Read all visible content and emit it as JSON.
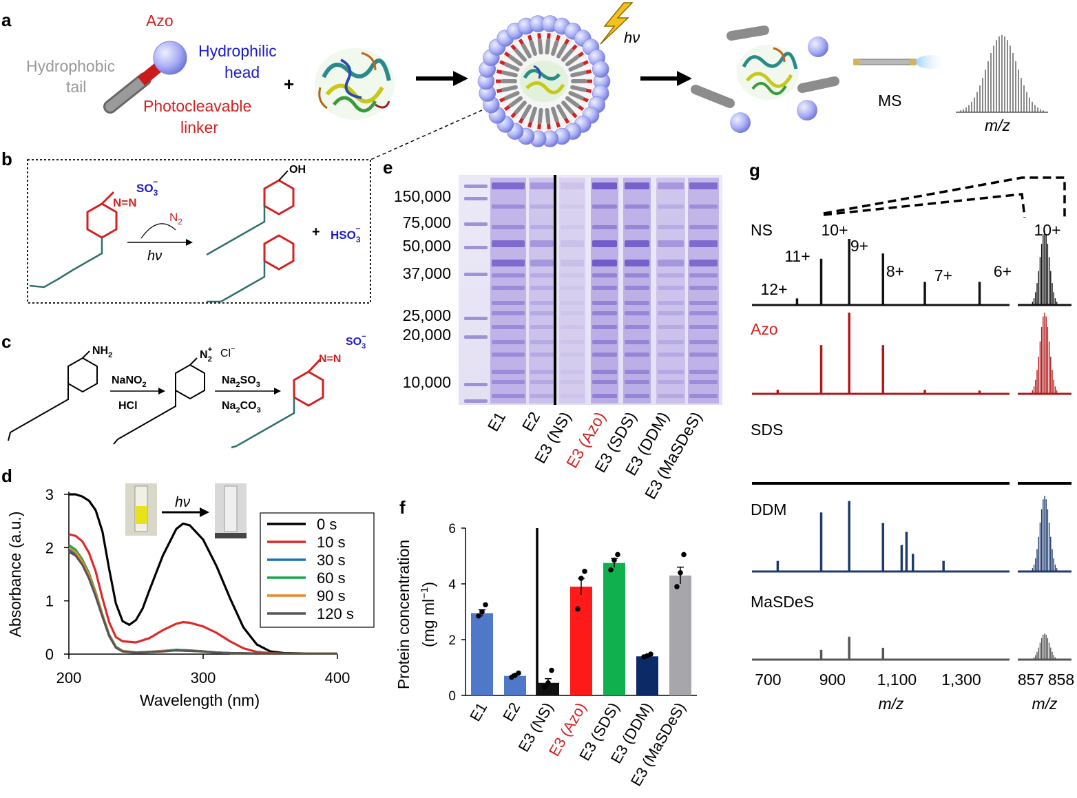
{
  "panels": {
    "a": {
      "letter": "a",
      "azo": "Azo",
      "hydrophobic_1": "Hydrophobic",
      "hydrophobic_2": "tail",
      "hydrophilic_1": "Hydrophilic",
      "hydrophilic_2": "head",
      "photocleavable_1": "Photocleavable",
      "photocleavable_2": "linker",
      "plus": "+",
      "hv": "hν",
      "ms": "MS",
      "mz": "m/z"
    },
    "b": {
      "letter": "b",
      "so3": "SO",
      "so3_sub": "3",
      "so3_sup": "−",
      "nn": "N=N",
      "oh": "OH",
      "n2": "N",
      "n2_sub": "2",
      "hv": "hν",
      "plus": "+",
      "hso3": "HSO",
      "hso3_sub": "3",
      "hso3_sup": "−"
    },
    "c": {
      "letter": "c",
      "nh2": "NH",
      "nh2_sub": "2",
      "n2cl": "N",
      "n2cl_sub": "2",
      "n2cl_sup": "+",
      "cl": "Cl",
      "cl_sup": "−",
      "r1_top": "NaNO",
      "r1_top_sub": "2",
      "r1_bottom": "HCl",
      "r2_top": "Na",
      "r2_top_sub1": "2",
      "r2_top_mid": "SO",
      "r2_top_sub2": "3",
      "r2_bottom": "Na",
      "r2_bottom_sub1": "2",
      "r2_bottom_mid": "CO",
      "r2_bottom_sub2": "3",
      "nn": "N=N",
      "so3": "SO",
      "so3_sub": "3",
      "so3_sup": "−"
    },
    "d": {
      "letter": "d",
      "hv": "hν"
    },
    "e": {
      "letter": "e",
      "mw_markers": [
        "150,000",
        "75,000",
        "50,000",
        "37,000",
        "25,000",
        "20,000",
        "10,000"
      ],
      "lanes": [
        "E1",
        "E2",
        "E3 (NS)",
        "E3 (Azo)",
        "E3 (SDS)",
        "E3 (DDM)",
        "E3 (MaSDeS)"
      ]
    },
    "f": {
      "letter": "f"
    },
    "g": {
      "letter": "g",
      "traces": [
        "NS",
        "Azo",
        "SDS",
        "DDM",
        "MaSDeS"
      ],
      "charge_states": [
        "12+",
        "11+",
        "10+",
        "9+",
        "8+",
        "7+",
        "6+"
      ],
      "zoom_label": "10+",
      "x_ticks_main": [
        "700",
        "900",
        "1,100",
        "1,300"
      ],
      "x_ticks_zoom": [
        "857",
        "858"
      ],
      "x_label": "m/z"
    }
  },
  "colors": {
    "azo_red": "#d42020",
    "hydrophilic_blue": "#1a1acc",
    "gray_text": "#999999",
    "teal_chain": "#2f6f6a",
    "gel_purple": "#6a4fc4",
    "ns_black": "#111111",
    "azo_trace": "#b01818",
    "ddm_navy": "#1c3a6e",
    "masdes_gray": "#555555"
  },
  "chart_data": [
    {
      "id": "d",
      "type": "line",
      "title": "",
      "xlabel": "Wavelength (nm)",
      "ylabel": "Absorbance (a.u.)",
      "xlim": [
        200,
        400
      ],
      "ylim": [
        0,
        3
      ],
      "xticks": [
        200,
        300,
        400
      ],
      "yticks": [
        0,
        1,
        2,
        3
      ],
      "legend_position": "right",
      "series": [
        {
          "name": "0 s",
          "color": "#000000",
          "x": [
            200,
            205,
            210,
            215,
            220,
            225,
            230,
            235,
            240,
            245,
            250,
            255,
            260,
            270,
            280,
            285,
            290,
            300,
            310,
            320,
            330,
            340,
            350,
            360,
            380,
            400
          ],
          "y": [
            3.0,
            3.0,
            2.96,
            2.88,
            2.7,
            2.3,
            1.6,
            0.95,
            0.62,
            0.55,
            0.64,
            0.86,
            1.2,
            1.85,
            2.35,
            2.45,
            2.42,
            2.15,
            1.65,
            1.05,
            0.5,
            0.18,
            0.05,
            0.02,
            0.01,
            0.01
          ]
        },
        {
          "name": "10 s",
          "color": "#e02828",
          "x": [
            200,
            205,
            210,
            215,
            220,
            225,
            230,
            235,
            240,
            250,
            260,
            270,
            280,
            285,
            290,
            300,
            310,
            320,
            330,
            340,
            350,
            360,
            380,
            400
          ],
          "y": [
            2.25,
            2.22,
            2.12,
            1.9,
            1.55,
            1.05,
            0.6,
            0.32,
            0.24,
            0.22,
            0.3,
            0.45,
            0.57,
            0.6,
            0.59,
            0.52,
            0.4,
            0.24,
            0.11,
            0.04,
            0.02,
            0.01,
            0.01,
            0.01
          ]
        },
        {
          "name": "30 s",
          "color": "#1f6fbf",
          "x": [
            200,
            205,
            210,
            215,
            220,
            225,
            230,
            235,
            240,
            250,
            260,
            270,
            280,
            290,
            300,
            310,
            320,
            340,
            360,
            400
          ],
          "y": [
            1.95,
            1.88,
            1.7,
            1.45,
            1.12,
            0.72,
            0.36,
            0.14,
            0.06,
            0.03,
            0.04,
            0.06,
            0.08,
            0.07,
            0.05,
            0.03,
            0.02,
            0.01,
            0.01,
            0.01
          ]
        },
        {
          "name": "60 s",
          "color": "#1aa64f",
          "x": [
            200,
            205,
            210,
            215,
            220,
            225,
            230,
            235,
            240,
            250,
            260,
            270,
            280,
            290,
            300,
            310,
            320,
            340,
            360,
            400
          ],
          "y": [
            2.05,
            1.96,
            1.78,
            1.52,
            1.16,
            0.74,
            0.37,
            0.14,
            0.06,
            0.03,
            0.04,
            0.06,
            0.08,
            0.07,
            0.05,
            0.03,
            0.02,
            0.01,
            0.01,
            0.01
          ]
        },
        {
          "name": "90 s",
          "color": "#e8862a",
          "x": [
            200,
            205,
            210,
            215,
            220,
            225,
            230,
            235,
            240,
            250,
            260,
            270,
            280,
            290,
            300,
            310,
            320,
            340,
            360,
            400
          ],
          "y": [
            2.0,
            1.92,
            1.74,
            1.48,
            1.13,
            0.72,
            0.36,
            0.13,
            0.06,
            0.03,
            0.04,
            0.06,
            0.07,
            0.06,
            0.05,
            0.03,
            0.02,
            0.01,
            0.01,
            0.01
          ]
        },
        {
          "name": "120 s",
          "color": "#555555",
          "x": [
            200,
            205,
            210,
            215,
            220,
            225,
            230,
            235,
            240,
            250,
            260,
            270,
            280,
            290,
            300,
            310,
            320,
            340,
            360,
            400
          ],
          "y": [
            1.92,
            1.85,
            1.68,
            1.42,
            1.08,
            0.7,
            0.34,
            0.12,
            0.05,
            0.03,
            0.04,
            0.05,
            0.07,
            0.06,
            0.05,
            0.03,
            0.02,
            0.01,
            0.01,
            0.01
          ]
        }
      ]
    },
    {
      "id": "f",
      "type": "bar",
      "title": "",
      "xlabel": "",
      "ylabel": "Protein concentration (mg ml−1)",
      "ylabel_main": "Protein concentration",
      "ylabel_unit": "(mg ml",
      "ylabel_unit_sup": "−1",
      "ylabel_unit_end": ")",
      "ylim": [
        0,
        6
      ],
      "yticks": [
        0,
        2,
        4,
        6
      ],
      "categories": [
        "E1",
        "E2",
        "E3 (NS)",
        "E3 (Azo)",
        "E3 (SDS)",
        "E3 (DDM)",
        "E3 (MaSDeS)"
      ],
      "values": [
        2.95,
        0.7,
        0.45,
        3.9,
        4.75,
        1.4,
        4.3
      ],
      "errors": [
        0.12,
        0.06,
        0.15,
        0.3,
        0.16,
        0.05,
        0.3
      ],
      "points": [
        [
          2.85,
          3.0,
          3.25
        ],
        [
          0.65,
          0.72,
          0.8
        ],
        [
          0.3,
          0.45,
          0.9
        ],
        [
          3.1,
          4.2,
          4.45
        ],
        [
          4.5,
          4.85,
          5.05
        ],
        [
          1.38,
          1.42,
          1.48
        ],
        [
          3.9,
          4.4,
          5.05
        ]
      ],
      "colors": [
        "#4f79c8",
        "#4f79c8",
        "#111111",
        "#ff1a1a",
        "#11b04f",
        "#0b2a66",
        "#a7a6ab"
      ]
    }
  ]
}
